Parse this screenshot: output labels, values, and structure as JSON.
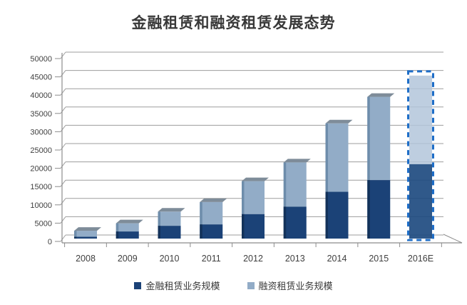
{
  "title": "金融租赁和融资租赁发展态势",
  "colors": {
    "title_text": "#383838",
    "axis_text": "#3F3F3F",
    "legend_text": "#383838",
    "gridline": "#9D9D9D",
    "axis_line": "#8C8C8C",
    "bar_cap": "#7E8C99",
    "background": "#FFFFFF"
  },
  "chart_data": {
    "type": "bar",
    "stacked": true,
    "pseudo_3d": true,
    "title": "金融租赁和融资租赁发展态势",
    "xlabel": "",
    "ylabel": "",
    "categories": [
      "2008",
      "2009",
      "2010",
      "2011",
      "2012",
      "2013",
      "2014",
      "2015",
      "2016E"
    ],
    "series": [
      {
        "name": "金融租赁业务规模",
        "color": "#1B4277",
        "edge_color": "#13325A",
        "values": [
          500,
          2000,
          3600,
          4000,
          6900,
          9000,
          13200,
          16500,
          21000
        ]
      },
      {
        "name": "融资租赁业务规模",
        "color": "#92ACC7",
        "edge_color": "#6E8DAB",
        "values": [
          1700,
          2300,
          4000,
          6300,
          9300,
          12500,
          19300,
          23500,
          25000
        ]
      }
    ],
    "totals": [
      2200,
      4300,
      7600,
      10300,
      16200,
      21500,
      32500,
      40000,
      46000
    ],
    "ylim": [
      0,
      50000
    ],
    "ytick_step": 5000,
    "ytick_values": [
      0,
      5000,
      10000,
      15000,
      20000,
      25000,
      30000,
      35000,
      40000,
      45000,
      50000
    ],
    "ytick_labels": [
      "0",
      "5000",
      "10000",
      "15000",
      "20000",
      "25000",
      "30000",
      "35000",
      "40000",
      "45000",
      "50000"
    ],
    "grid": true,
    "legend_position": "bottom",
    "forecast": {
      "category": "2016E",
      "style": "dashed-outline",
      "border_color": "#1E6EC8",
      "light_fill": "#B3C6DB",
      "dark_fill": "#1E4B80"
    }
  }
}
